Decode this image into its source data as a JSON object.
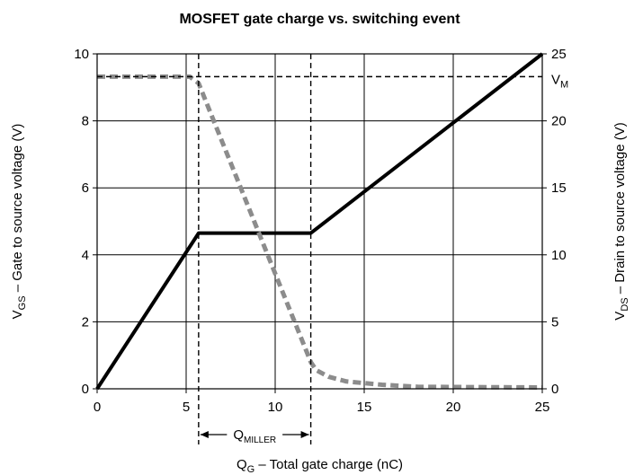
{
  "chart_data": {
    "type": "line",
    "title": "MOSFET gate charge vs. switching event",
    "xlabel": {
      "main": "Q",
      "sub": "G",
      "rest": " – Total gate charge (nC)"
    },
    "ylabel_left": {
      "main": "V",
      "sub": "GS",
      "rest": " – Gate to source voltage (V)"
    },
    "ylabel_right": {
      "main": "V",
      "sub": "DS",
      "rest": " – Drain to source voltage (V)"
    },
    "xlim": [
      0,
      25
    ],
    "ylim_left": [
      0,
      10
    ],
    "ylim_right": [
      0,
      25
    ],
    "x_ticks": [
      0,
      5,
      10,
      15,
      20,
      25
    ],
    "y_left_ticks": [
      0,
      2,
      4,
      6,
      8,
      10
    ],
    "y_right_ticks": [
      0,
      5,
      10,
      15,
      20,
      25
    ],
    "grid": true,
    "series": [
      {
        "axis": "left",
        "style": "solid",
        "color": "#000000",
        "x": [
          0,
          5.7,
          12,
          25
        ],
        "y": [
          0,
          4.65,
          4.65,
          10
        ]
      },
      {
        "axis": "right",
        "style": "dashed",
        "color": "#8c8c8c",
        "x": [
          0,
          5.2,
          5.7,
          12,
          12.3,
          13,
          14,
          16,
          18,
          25
        ],
        "y": [
          23.3,
          23.3,
          22.8,
          2.0,
          1.4,
          0.9,
          0.55,
          0.3,
          0.15,
          0.1
        ]
      }
    ],
    "annotations": {
      "vm_label_main": "V",
      "vm_label_sub": "M",
      "vm_value": 23.3,
      "miller_label_main": "Q",
      "miller_label_sub": "MILLER",
      "miller_start": 5.7,
      "miller_end": 12
    }
  }
}
